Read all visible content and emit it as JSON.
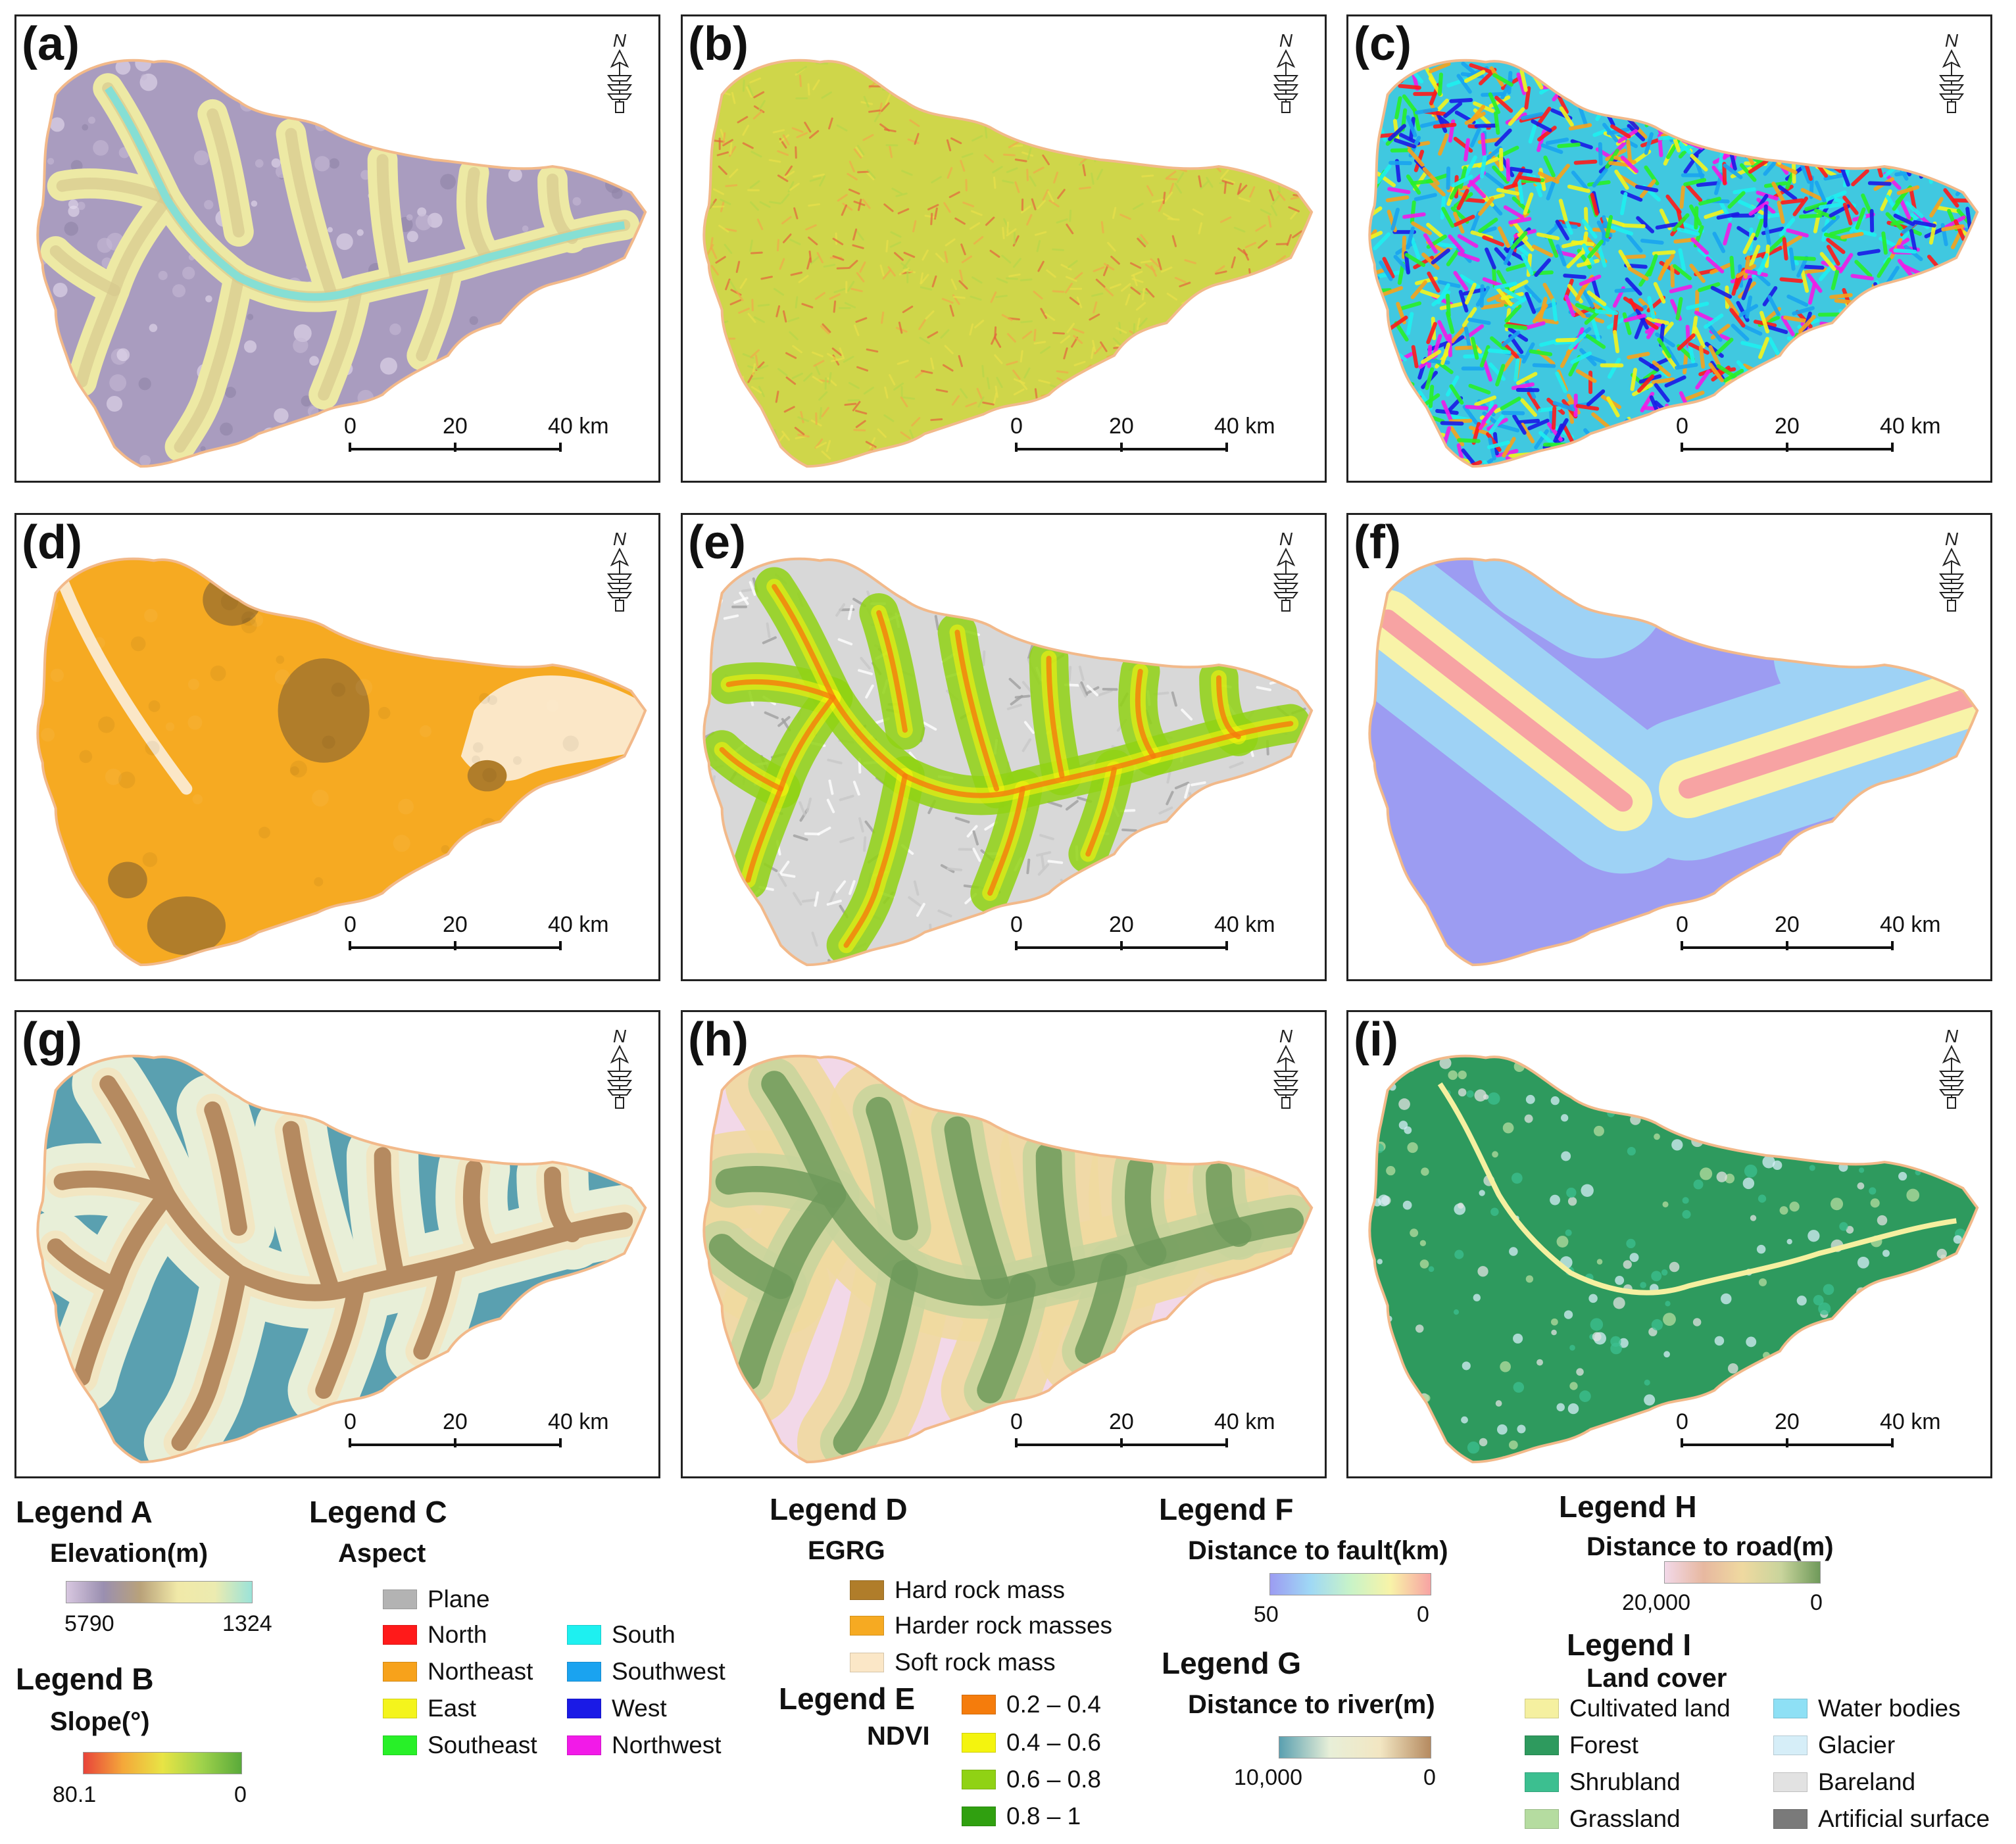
{
  "panels": [
    {
      "label": "(a)",
      "theme": "elevation"
    },
    {
      "label": "(b)",
      "theme": "slope"
    },
    {
      "label": "(c)",
      "theme": "aspect"
    },
    {
      "label": "(d)",
      "theme": "egrg"
    },
    {
      "label": "(e)",
      "theme": "ndvi"
    },
    {
      "label": "(f)",
      "theme": "fault"
    },
    {
      "label": "(g)",
      "theme": "river"
    },
    {
      "label": "(h)",
      "theme": "road"
    },
    {
      "label": "(i)",
      "theme": "landcover"
    }
  ],
  "north_arrow": {
    "letter": "N",
    "icon": "north-arrow-icon"
  },
  "scale_bar": {
    "ticks": [
      "0",
      "20",
      "40 km"
    ]
  },
  "legend_a": {
    "title": "Legend A",
    "subtitle": "Elevation(m)",
    "min_label": "5790",
    "max_label": "1324",
    "colors": [
      "#d8c7e0",
      "#9a8fb0",
      "#b9a27a",
      "#f1e9a8",
      "#ecebb0",
      "#9be3d9"
    ]
  },
  "legend_b": {
    "title": "Legend B",
    "subtitle": "Slope(°)",
    "min_label": "80.1",
    "max_label": "0",
    "colors": [
      "#e8443a",
      "#f4a83a",
      "#e8e445",
      "#9fd24b",
      "#5aaa3a"
    ]
  },
  "legend_c": {
    "title": "Legend C",
    "subtitle": "Aspect",
    "items": [
      {
        "label": "Plane",
        "color": "#b3b3b3"
      },
      {
        "label": "North",
        "color": "#ff1a1a"
      },
      {
        "label": "Northeast",
        "color": "#f7a21b"
      },
      {
        "label": "East",
        "color": "#f4f41c"
      },
      {
        "label": "Southeast",
        "color": "#28f028"
      },
      {
        "label": "South",
        "color": "#1ef0f0"
      },
      {
        "label": "Southwest",
        "color": "#1aa3f0"
      },
      {
        "label": "West",
        "color": "#1a1ae6"
      },
      {
        "label": "Northwest",
        "color": "#f21ae8"
      }
    ]
  },
  "legend_d": {
    "title": "Legend D",
    "subtitle": "EGRG",
    "items": [
      {
        "label": "Hard rock mass",
        "color": "#b07d2a"
      },
      {
        "label": "Harder rock masses",
        "color": "#f6aa22"
      },
      {
        "label": "Soft rock mass",
        "color": "#fbe7c7"
      }
    ]
  },
  "legend_e": {
    "title": "Legend E",
    "subtitle": "NDVI",
    "items": [
      {
        "label": "0.2 – 0.4",
        "color": "#f57c0c"
      },
      {
        "label": "0.4 – 0.6",
        "color": "#f4f40e"
      },
      {
        "label": "0.6 – 0.8",
        "color": "#90d214"
      },
      {
        "label": "0.8 – 1",
        "color": "#30a010"
      }
    ]
  },
  "legend_f": {
    "title": "Legend F",
    "subtitle": "Distance to fault(km)",
    "min_label": "50",
    "max_label": "0",
    "colors": [
      "#9c9cf2",
      "#9fd8f5",
      "#c8f3c8",
      "#f8f3a8",
      "#f7a3a3"
    ]
  },
  "legend_g": {
    "title": "Legend G",
    "subtitle": "Distance to river(m)",
    "min_label": "10,000",
    "max_label": "0",
    "colors": [
      "#5aa0b0",
      "#e8efd8",
      "#f2e6c2",
      "#b58a60"
    ]
  },
  "legend_h": {
    "title": "Legend H",
    "subtitle": "Distance to road(m)",
    "min_label": "20,000",
    "max_label": "0",
    "colors": [
      "#f2d8e8",
      "#e7b8a0",
      "#efd9a0",
      "#c9d49c",
      "#6f9a5a"
    ]
  },
  "legend_i": {
    "title": "Legend I",
    "subtitle": "Land cover",
    "items": [
      {
        "label": "Cultivated land",
        "color": "#f5f0a0"
      },
      {
        "label": "Forest",
        "color": "#2e9a5e"
      },
      {
        "label": "Shrubland",
        "color": "#3cbf90"
      },
      {
        "label": "Grassland",
        "color": "#b5dca0"
      },
      {
        "label": "Water bodies",
        "color": "#8ee0f5"
      },
      {
        "label": "Glacier",
        "color": "#d6eef8"
      },
      {
        "label": "Bareland",
        "color": "#e2e2e2"
      },
      {
        "label": "Artificial surface",
        "color": "#7a7a7a"
      }
    ]
  }
}
